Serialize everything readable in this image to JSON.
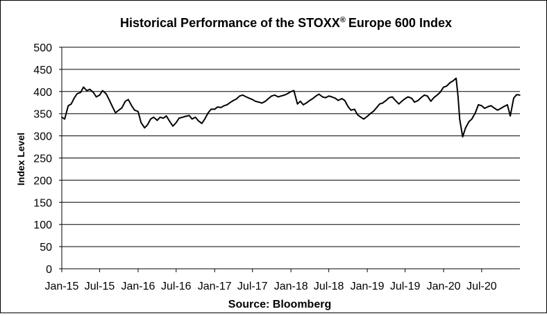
{
  "chart_data": {
    "type": "line",
    "title": "Historical Performance of the STOXX",
    "title_mark": "®",
    "title_suffix": "Europe 600 Index",
    "ylabel": "Index Level",
    "xlabel": "Source: Bloomberg",
    "ylim": [
      0,
      500
    ],
    "yticks": [
      "0",
      "50",
      "100",
      "150",
      "200",
      "250",
      "300",
      "350",
      "400",
      "450",
      "500"
    ],
    "xticks": [
      "Jan-15",
      "Jul-15",
      "Jan-16",
      "Jul-16",
      "Jan-17",
      "Jul-17",
      "Jan-18",
      "Jul-18",
      "Jan-19",
      "Jul-19",
      "Jan-20",
      "Jul-20"
    ],
    "grid": true,
    "line_color": "#000000",
    "series": [
      {
        "x": [
          "2015-01-01",
          "2015-01-15",
          "2015-02-01",
          "2015-02-15",
          "2015-03-01",
          "2015-03-15",
          "2015-04-01",
          "2015-04-15",
          "2015-05-01",
          "2015-05-15",
          "2015-06-01",
          "2015-06-15",
          "2015-07-01",
          "2015-07-15",
          "2015-08-01",
          "2015-08-15",
          "2015-09-01",
          "2015-09-15",
          "2015-10-01",
          "2015-10-15",
          "2015-11-01",
          "2015-11-15",
          "2015-12-01",
          "2015-12-15",
          "2016-01-01",
          "2016-01-15",
          "2016-02-01",
          "2016-02-15",
          "2016-03-01",
          "2016-03-15",
          "2016-04-01",
          "2016-04-15",
          "2016-05-01",
          "2016-05-15",
          "2016-06-01",
          "2016-06-15",
          "2016-07-01",
          "2016-07-15",
          "2016-08-01",
          "2016-08-15",
          "2016-09-01",
          "2016-09-15",
          "2016-10-01",
          "2016-10-15",
          "2016-11-01",
          "2016-11-15",
          "2016-12-01",
          "2016-12-15",
          "2017-01-01",
          "2017-01-15",
          "2017-02-01",
          "2017-02-15",
          "2017-03-01",
          "2017-03-15",
          "2017-04-01",
          "2017-04-15",
          "2017-05-01",
          "2017-05-15",
          "2017-06-01",
          "2017-06-15",
          "2017-07-01",
          "2017-07-15",
          "2017-08-01",
          "2017-08-15",
          "2017-09-01",
          "2017-09-15",
          "2017-10-01",
          "2017-10-15",
          "2017-11-01",
          "2017-11-15",
          "2017-12-01",
          "2017-12-15",
          "2018-01-01",
          "2018-01-15",
          "2018-02-01",
          "2018-02-15",
          "2018-03-01",
          "2018-03-15",
          "2018-04-01",
          "2018-04-15",
          "2018-05-01",
          "2018-05-15",
          "2018-06-01",
          "2018-06-15",
          "2018-07-01",
          "2018-07-15",
          "2018-08-01",
          "2018-08-15",
          "2018-09-01",
          "2018-09-15",
          "2018-10-01",
          "2018-10-15",
          "2018-11-01",
          "2018-11-15",
          "2018-12-01",
          "2018-12-15",
          "2019-01-01",
          "2019-01-15",
          "2019-02-01",
          "2019-02-15",
          "2019-03-01",
          "2019-03-15",
          "2019-04-01",
          "2019-04-15",
          "2019-05-01",
          "2019-05-15",
          "2019-06-01",
          "2019-06-15",
          "2019-07-01",
          "2019-07-15",
          "2019-08-01",
          "2019-08-15",
          "2019-09-01",
          "2019-09-15",
          "2019-10-01",
          "2019-10-15",
          "2019-11-01",
          "2019-11-15",
          "2019-12-01",
          "2019-12-15",
          "2020-01-01",
          "2020-01-15",
          "2020-02-01",
          "2020-02-15",
          "2020-03-01",
          "2020-03-10",
          "2020-03-18",
          "2020-04-01",
          "2020-04-15",
          "2020-05-01",
          "2020-05-15",
          "2020-06-01",
          "2020-06-15",
          "2020-07-01",
          "2020-07-15",
          "2020-08-01",
          "2020-08-15",
          "2020-09-01",
          "2020-09-15",
          "2020-10-01",
          "2020-10-15",
          "2020-11-01",
          "2020-11-15",
          "2020-12-01",
          "2020-12-15",
          "2020-12-31"
        ],
        "values": [
          342,
          338,
          368,
          372,
          385,
          395,
          398,
          410,
          402,
          405,
          398,
          388,
          392,
          402,
          395,
          382,
          365,
          352,
          358,
          363,
          378,
          382,
          368,
          358,
          355,
          330,
          318,
          325,
          338,
          342,
          335,
          342,
          340,
          345,
          332,
          322,
          330,
          340,
          342,
          344,
          346,
          338,
          342,
          334,
          328,
          338,
          352,
          360,
          360,
          365,
          364,
          368,
          370,
          375,
          380,
          383,
          390,
          392,
          388,
          385,
          382,
          378,
          376,
          374,
          378,
          384,
          390,
          392,
          388,
          390,
          392,
          395,
          400,
          402,
          372,
          378,
          370,
          374,
          380,
          384,
          390,
          394,
          388,
          386,
          390,
          388,
          385,
          380,
          384,
          380,
          366,
          358,
          360,
          348,
          342,
          338,
          344,
          350,
          356,
          364,
          372,
          374,
          380,
          386,
          388,
          380,
          372,
          378,
          384,
          388,
          385,
          376,
          380,
          386,
          392,
          390,
          378,
          386,
          392,
          398,
          410,
          412,
          420,
          424,
          430,
          390,
          338,
          298,
          318,
          332,
          338,
          352,
          370,
          368,
          362,
          366,
          368,
          362,
          358,
          362,
          366,
          370,
          345,
          385,
          393,
          392
        ],
        "x_range": [
          "2015-01-01",
          "2020-12-31"
        ]
      }
    ]
  }
}
